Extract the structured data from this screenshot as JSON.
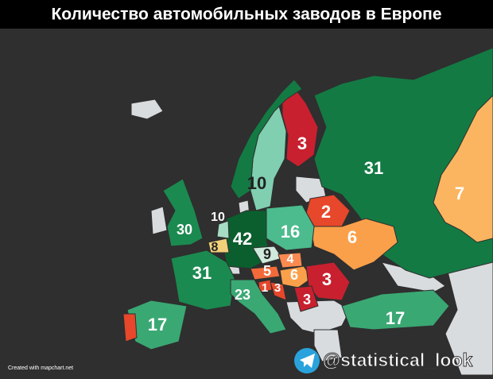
{
  "title": "Количество автомобильных заводов в Европе",
  "regions": [
    {
      "value": 31,
      "color": "#137a44"
    },
    {
      "value": 7,
      "color": "#fbb560"
    },
    {
      "value": 3,
      "color": "#c8202f"
    },
    {
      "value": 10,
      "color": "#7fcfb0"
    },
    {
      "value": null,
      "color": "#137a44"
    },
    {
      "value": 2,
      "color": "#e7472a"
    },
    {
      "value": 6,
      "color": "#fba04a"
    },
    {
      "value": 16,
      "color": "#4cbb8d"
    },
    {
      "value": 42,
      "color": "#0b5f2e"
    },
    {
      "value": 10,
      "color": "#a6dcc4"
    },
    {
      "value": 8,
      "color": "#f3d07a"
    },
    {
      "value": 30,
      "color": "#1b8a50"
    },
    {
      "value": 31,
      "color": "#1b8a50"
    },
    {
      "value": 9,
      "color": "#cfe9dd"
    },
    {
      "value": 4,
      "color": "#fb8a50"
    },
    {
      "value": 5,
      "color": "#f26a3a"
    },
    {
      "value": 6,
      "color": "#fba04a"
    },
    {
      "value": 3,
      "color": "#c8202f"
    },
    {
      "value": 1,
      "color": "#e7472a"
    },
    {
      "value": 3,
      "color": "#e7472a"
    },
    {
      "value": 3,
      "color": "#c8202f"
    },
    {
      "value": 23,
      "color": "#3aa873"
    },
    {
      "value": 17,
      "color": "#3aa873"
    },
    {
      "value": null,
      "color": "#e7472a"
    },
    {
      "value": 17,
      "color": "#3aa873"
    }
  ],
  "watermark": "@statistical_look",
  "credit": "Created with mapchart.net"
}
